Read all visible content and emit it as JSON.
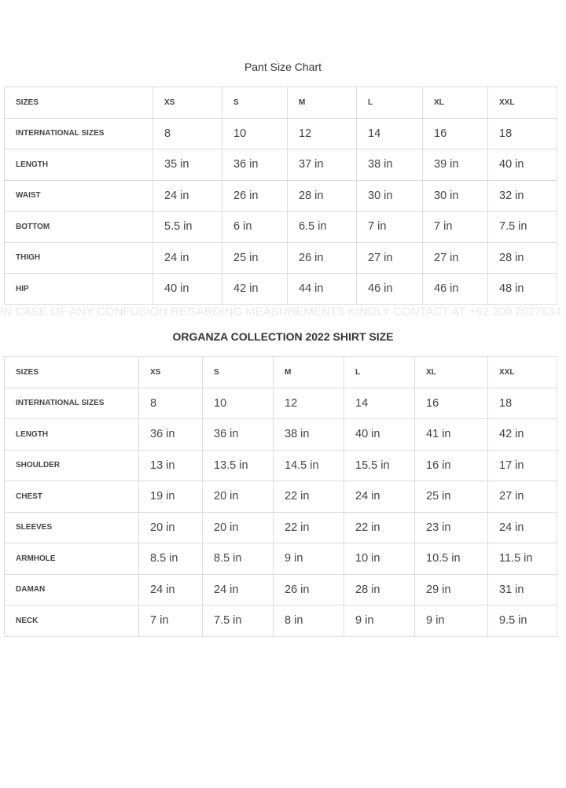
{
  "pant": {
    "title": "Pant Size Chart",
    "header": [
      "SIZES",
      "XS",
      "S",
      "M",
      "L",
      "XL",
      "XXL"
    ],
    "rows": [
      [
        "INTERNATIONAL SIZES",
        "8",
        "10",
        "12",
        "14",
        "16",
        "18"
      ],
      [
        "LENGTH",
        "35 in",
        "36 in",
        "37 in",
        "38 in",
        "39 in",
        "40 in"
      ],
      [
        "WAIST",
        "24 in",
        "26 in",
        "28 in",
        "30 in",
        "30 in",
        "32 in"
      ],
      [
        "BOTTOM",
        "5.5 in",
        "6 in",
        "6.5 in",
        "7 in",
        "7 in",
        "7.5 in"
      ],
      [
        "THIGH",
        "24 in",
        "25 in",
        "26 in",
        "27 in",
        "27 in",
        "28 in"
      ],
      [
        "HIP",
        "40 in",
        "42 in",
        "44 in",
        "46 in",
        "46 in",
        "48 in"
      ]
    ]
  },
  "contact": "IN CASE OF ANY CONFUSION REGARDING MEASUREMENTS KINDLY CONTACT AT +92 300 2027634",
  "shirt": {
    "title": "ORGANZA COLLECTION 2022 SHIRT SIZE",
    "header": [
      "SIZES",
      "XS",
      "S",
      "M",
      "L",
      "XL",
      "XXL"
    ],
    "rows": [
      [
        "INTERNATIONAL SIZES",
        "8",
        "10",
        "12",
        "14",
        "16",
        "18"
      ],
      [
        "LENGTH",
        "36 in",
        "36 in",
        "38 in",
        "40 in",
        "41 in",
        "42 in"
      ],
      [
        "SHOULDER",
        "13 in",
        "13.5 in",
        "14.5 in",
        "15.5 in",
        "16 in",
        "17 in"
      ],
      [
        "CHEST",
        "19 in",
        "20 in",
        "22 in",
        "24 in",
        "25 in",
        "27 in"
      ],
      [
        "SLEEVES",
        "20 in",
        "20 in",
        "22 in",
        "22 in",
        "23 in",
        "24 in"
      ],
      [
        "ARMHOLE",
        "8.5 in",
        "8.5 in",
        "9 in",
        "10 in",
        "10.5 in",
        "11.5 in"
      ],
      [
        "DAMAN",
        "24 in",
        "24 in",
        "26 in",
        "28 in",
        "29 in",
        "31 in"
      ],
      [
        "NECK",
        "7 in",
        "7.5 in",
        "8 in",
        "9 in",
        "9 in",
        "9.5 in"
      ]
    ]
  }
}
